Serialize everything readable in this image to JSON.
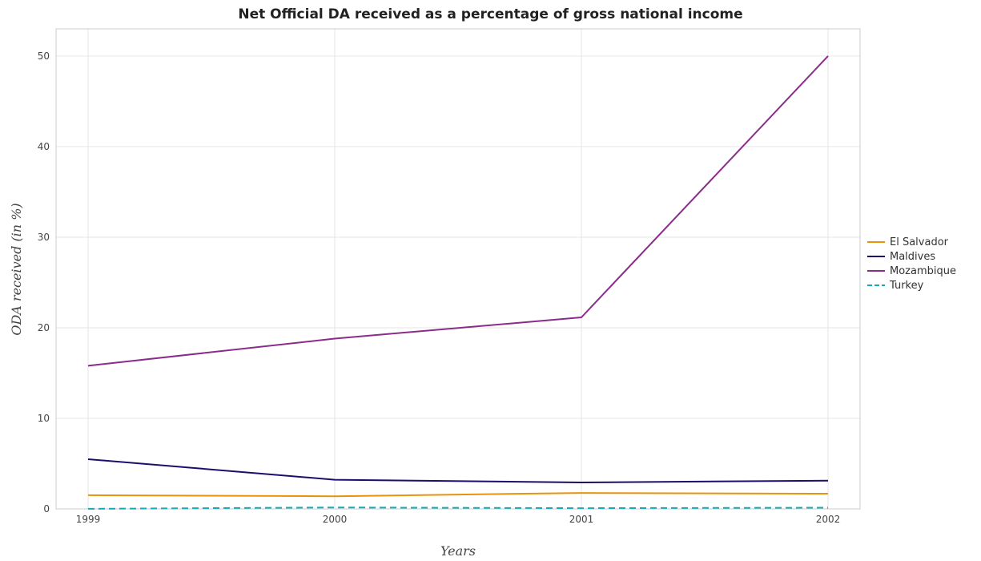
{
  "chart_data": {
    "type": "line",
    "title": "Net Official DA received as a percentage of gross national income",
    "xlabel": "Years",
    "ylabel": "ODA received (in %)",
    "x": [
      "1999",
      "2000",
      "2001",
      "2002"
    ],
    "ylim": [
      0,
      53
    ],
    "yticks": [
      0,
      10,
      20,
      30,
      40,
      50
    ],
    "grid": true,
    "legend_position": "right",
    "series": [
      {
        "name": "El Salvador",
        "color": "#e8930c",
        "dash": "solid",
        "values": [
          1.51,
          1.4,
          1.76,
          1.68
        ]
      },
      {
        "name": "Maldives",
        "color": "#1f0c6b",
        "dash": "solid",
        "values": [
          5.49,
          3.22,
          2.92,
          3.12
        ]
      },
      {
        "name": "Mozambique",
        "color": "#8a2c8a",
        "dash": "solid",
        "values": [
          15.8,
          18.8,
          21.15,
          50.0
        ]
      },
      {
        "name": "Turkey",
        "color": "#18a9b9",
        "dash": "dashed",
        "values": [
          0.01,
          0.16,
          0.08,
          0.13
        ]
      }
    ]
  }
}
